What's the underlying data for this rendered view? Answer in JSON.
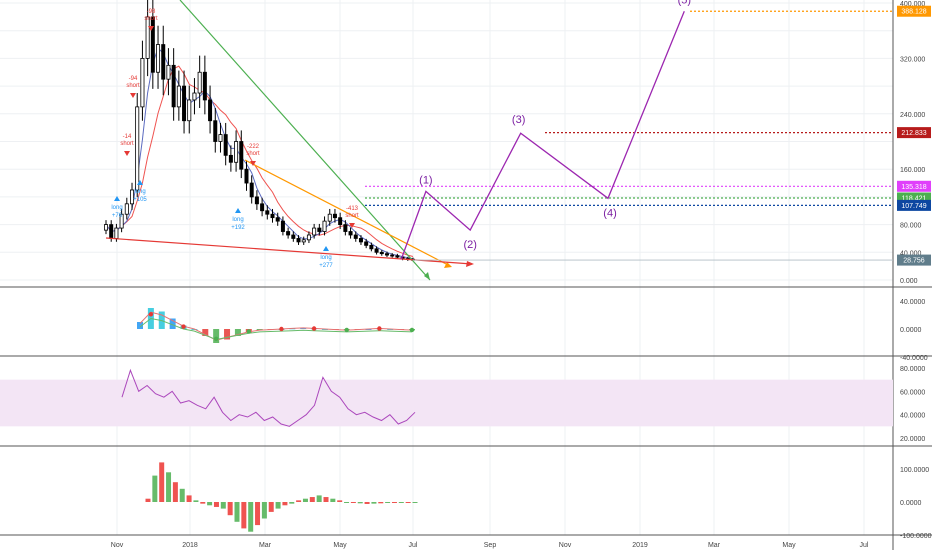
{
  "colors": {
    "up_candle": "#ffffff",
    "down_candle": "#000000",
    "candle_outline": "#000000",
    "wave": "#9c27b0",
    "wave_text": "#7b1fa2",
    "green_line": "#4caf50",
    "orange_line": "#ff9800",
    "red_line": "#e53935",
    "ma_red": "#ef5350",
    "ma_blue": "#5c6bc0",
    "rsi_band": "#f3e5f5",
    "rsi_line": "#ab47bc",
    "long_signal": "#2196f3",
    "short_signal": "#e53935"
  },
  "chart_data": [
    {
      "panel": "price",
      "type": "candlestick",
      "yticks": [
        "0.000",
        "40.000",
        "80.000",
        "160.000",
        "240.000",
        "320.000",
        "400.000"
      ],
      "ylim": [
        0,
        400
      ],
      "x_labels": [
        "Nov",
        "2018",
        "Mar",
        "May",
        "Jul",
        "Sep",
        "Nov",
        "2019",
        "Mar",
        "May",
        "Jul"
      ],
      "closes": [
        80,
        60,
        75,
        95,
        110,
        130,
        250,
        320,
        380,
        300,
        340,
        290,
        310,
        250,
        280,
        230,
        260,
        270,
        300,
        260,
        230,
        200,
        210,
        180,
        170,
        200,
        160,
        140,
        120,
        110,
        100,
        95,
        90,
        85,
        70,
        65,
        60,
        55,
        58,
        65,
        75,
        70,
        85,
        95,
        90,
        80,
        70,
        65,
        60,
        55,
        50,
        45,
        40,
        38,
        36,
        35,
        33,
        31,
        30,
        29
      ],
      "elliott_wave": {
        "labels": [
          "(1)",
          "(2)",
          "(3)",
          "(4)",
          "(5)"
        ],
        "points": [
          {
            "date": "2018-06-20",
            "price": 30
          },
          {
            "date": "2018-07-10",
            "price": 128
          },
          {
            "date": "2018-08-15",
            "price": 72
          },
          {
            "date": "2018-09-25",
            "price": 212
          },
          {
            "date": "2018-12-05",
            "price": 118
          },
          {
            "date": "2019-02-05",
            "price": 388
          }
        ]
      },
      "price_levels": [
        {
          "label": "388.128",
          "value": 388.128,
          "color": "#ff9800"
        },
        {
          "label": "212.833",
          "value": 212.833,
          "color": "#b71c1c"
        },
        {
          "label": "135.318",
          "value": 135.318,
          "color": "#e040fb"
        },
        {
          "label": "118.421",
          "value": 118.421,
          "color": "#4caf50"
        },
        {
          "label": "107.749",
          "value": 107.749,
          "color": "#0d47a1"
        }
      ],
      "current_price": {
        "label": "28.756",
        "value": 28.756,
        "color": "#607d8b"
      },
      "signals": [
        {
          "text": "long",
          "value": "+76",
          "side": "long"
        },
        {
          "text": "long",
          "value": "+105",
          "side": "long"
        },
        {
          "text": "long",
          "value": "+192",
          "side": "long"
        },
        {
          "text": "long",
          "value": "+277",
          "side": "long"
        },
        {
          "text": "-222",
          "value": "short",
          "side": "short"
        },
        {
          "text": "-413",
          "value": "short",
          "side": "short"
        },
        {
          "text": "-98",
          "value": "short",
          "side": "short"
        },
        {
          "text": "-94",
          "value": "short",
          "side": "short"
        },
        {
          "text": "-14",
          "value": "short",
          "side": "short"
        }
      ]
    },
    {
      "panel": "oscillator",
      "type": "line",
      "yticks": [
        "40.0000",
        "0.0000",
        "-40.0000"
      ],
      "ylim": [
        -40,
        40
      ],
      "values": [
        10,
        30,
        25,
        15,
        5,
        0,
        -10,
        -20,
        -15,
        -10,
        -5,
        -2,
        -1,
        0,
        1,
        2,
        1,
        0,
        -1,
        -2,
        -1,
        0,
        1,
        0,
        -1,
        -2
      ]
    },
    {
      "panel": "rsi",
      "type": "line",
      "yticks": [
        "80.0000",
        "60.0000",
        "40.0000",
        "20.0000"
      ],
      "ylim": [
        20,
        80
      ],
      "band": [
        30,
        70
      ],
      "values": [
        55,
        78,
        60,
        65,
        58,
        55,
        60,
        50,
        52,
        48,
        45,
        55,
        42,
        35,
        40,
        38,
        42,
        35,
        38,
        32,
        30,
        35,
        40,
        48,
        72,
        60,
        55,
        45,
        40,
        42,
        38,
        35,
        40,
        32,
        35,
        42
      ]
    },
    {
      "panel": "histogram",
      "type": "bar",
      "yticks": [
        "100.0000",
        "0.0000",
        "-100.0000"
      ],
      "ylim": [
        -100,
        100
      ],
      "values": [
        10,
        80,
        120,
        90,
        60,
        40,
        20,
        5,
        -5,
        -10,
        -15,
        -20,
        -40,
        -60,
        -80,
        -90,
        -70,
        -50,
        -30,
        -20,
        -10,
        -5,
        5,
        10,
        15,
        20,
        15,
        10,
        5,
        0,
        -2,
        -4,
        -6,
        -5,
        -4,
        -3,
        -2,
        -1,
        -1,
        -1
      ]
    }
  ]
}
